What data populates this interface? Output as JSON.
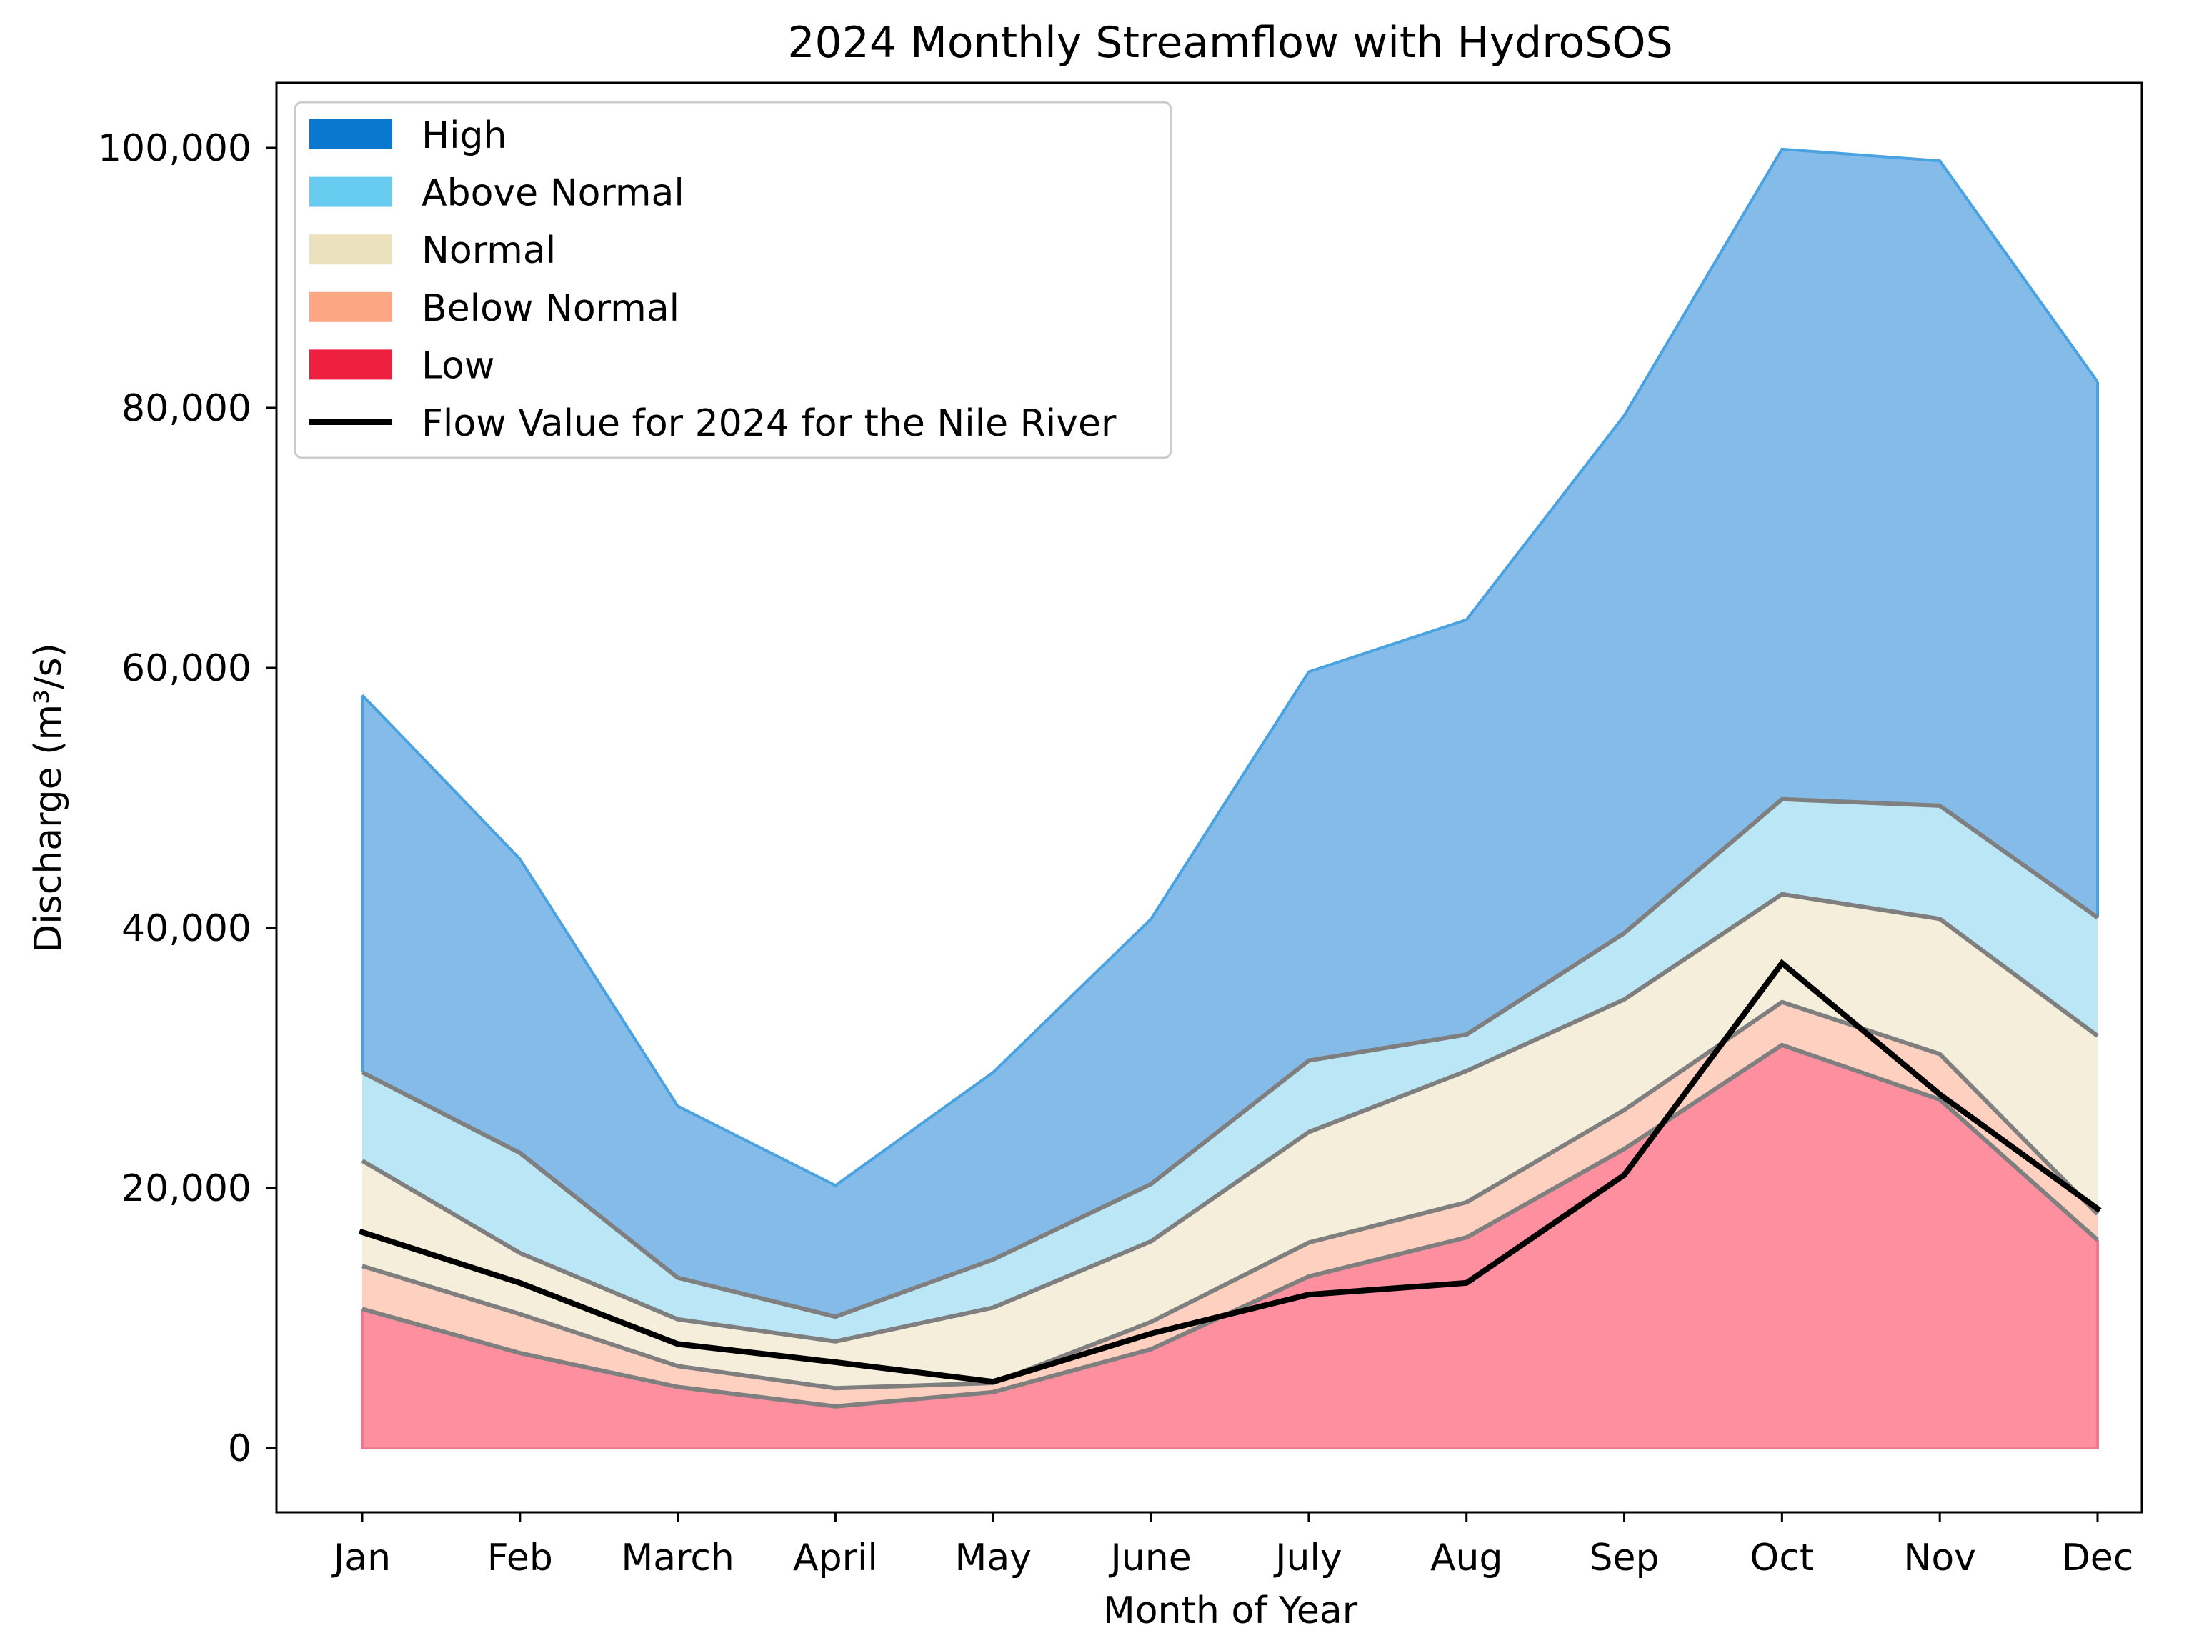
{
  "chart_data": {
    "type": "area",
    "title": "2024 Monthly Streamflow with HydroSOS",
    "xlabel": "Month of Year",
    "ylabel": "Discharge (m³/s)",
    "ylim": [
      -5000,
      105000
    ],
    "yticks": [
      0,
      20000,
      40000,
      60000,
      80000,
      100000
    ],
    "ytick_labels": [
      "0",
      "20,000",
      "40,000",
      "60,000",
      "80,000",
      "100,000"
    ],
    "categories": [
      "Jan",
      "Feb",
      "March",
      "April",
      "May",
      "June",
      "July",
      "Aug",
      "Sep",
      "Oct",
      "Nov",
      "Dec"
    ],
    "thresholds": {
      "low_upper": [
        10700,
        7300,
        4700,
        3200,
        4300,
        7600,
        13200,
        16200,
        23000,
        31000,
        26800,
        16000
      ],
      "below_normal_upper": [
        14000,
        10300,
        6300,
        4600,
        5000,
        9700,
        15800,
        18900,
        26000,
        34300,
        30300,
        18000
      ],
      "normal_upper": [
        22100,
        15000,
        9900,
        8200,
        10800,
        15900,
        24300,
        29000,
        34500,
        42600,
        40700,
        31700
      ],
      "above_normal_upper": [
        28900,
        22700,
        13100,
        10100,
        14500,
        20300,
        29800,
        31800,
        39600,
        49900,
        49400,
        40800
      ],
      "high_upper": [
        57900,
        45300,
        26300,
        20200,
        28900,
        40700,
        59700,
        63700,
        79400,
        99900,
        99000,
        82000
      ]
    },
    "series": [
      {
        "name": "Flow Value for 2024 for the Nile River",
        "values": [
          16600,
          12700,
          8000,
          6600,
          5100,
          8800,
          11800,
          12700,
          21000,
          37300,
          27200,
          18400
        ]
      }
    ],
    "legend": {
      "position": "top-left",
      "entries": [
        {
          "label": "High",
          "color": "#0b78cf",
          "kind": "patch"
        },
        {
          "label": "Above Normal",
          "color": "#67ccf0",
          "kind": "patch"
        },
        {
          "label": "Normal",
          "color": "#ebe2bd",
          "kind": "patch"
        },
        {
          "label": "Below Normal",
          "color": "#fda683",
          "kind": "patch"
        },
        {
          "label": "Low",
          "color": "#ed2040",
          "kind": "patch"
        },
        {
          "label": "Flow Value for 2024 for the Nile River",
          "color": "#000000",
          "kind": "line"
        }
      ]
    },
    "fill_colors": {
      "high": "#84bbe8",
      "above_normal": "#bae6f5",
      "normal": "#f4eedb",
      "below_normal": "#fdd0c0",
      "low": "#fd8f9e"
    },
    "edge_colors": {
      "threshold_line": "#7f7f7f",
      "high_top": "#4aa3e0",
      "low_base": "#f0788e",
      "flow_line": "#000000"
    }
  }
}
